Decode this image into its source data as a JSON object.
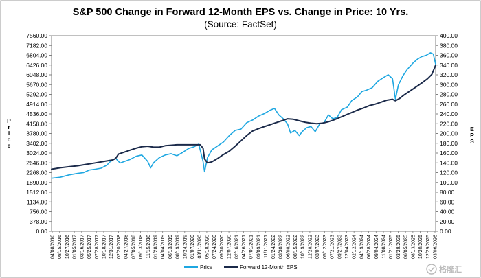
{
  "chart_data": {
    "type": "line",
    "title": "S&P 500 Change in Forward 12-Month EPS vs. Change in Price: 10 Yrs.",
    "subtitle": "(Source: FactSet)",
    "ylabel_left": "Price",
    "ylabel_right": "EPS",
    "ylim_left": [
      0,
      7560
    ],
    "ylim_right": [
      0,
      400
    ],
    "yticks_left": [
      "0.00",
      "378.00",
      "756.00",
      "1134.00",
      "1512.00",
      "1890.00",
      "2268.00",
      "2646.00",
      "3024.00",
      "3402.00",
      "3780.00",
      "4158.00",
      "4536.00",
      "4914.00",
      "5292.00",
      "5670.00",
      "6048.00",
      "6426.00",
      "6804.00",
      "7182.00",
      "7560.00"
    ],
    "yticks_right": [
      "0.00",
      "20.00",
      "40.00",
      "60.00",
      "80.00",
      "100.00",
      "120.00",
      "140.00",
      "160.00",
      "180.00",
      "200.00",
      "220.00",
      "240.00",
      "260.00",
      "280.00",
      "300.00",
      "320.00",
      "340.00",
      "360.00",
      "380.00",
      "400.00"
    ],
    "xticks": [
      "04/08/2016",
      "08/15/2016",
      "10/27/2016",
      "01/05/2017",
      "03/16/2017",
      "05/25/2017",
      "07/28/2017",
      "10/18/2017",
      "12/31/2017",
      "02/20/2018",
      "04/27/2018",
      "07/05/2018",
      "09/13/2018",
      "11/15/2018",
      "01/28/2019",
      "04/04/2019",
      "06/13/2019",
      "08/19/2019",
      "10/24/2019",
      "01/07/2020",
      "03/11/2020",
      "05/18/2020",
      "07/24/2020",
      "09/30/2020",
      "12/07/2020",
      "02/16/2021",
      "04/26/2021",
      "07/01/2021",
      "09/09/2021",
      "11/11/2021",
      "01/24/2022",
      "03/30/2022",
      "06/08/2022",
      "08/15/2022",
      "10/19/2022",
      "12/28/2022",
      "03/07/2023",
      "05/12/2023",
      "07/21/2023",
      "09/27/2023",
      "12/04/2023",
      "02/12/2024",
      "04/19/2024",
      "06/28/2024",
      "09/04/2024",
      "11/08/2024",
      "01/21/2025",
      "03/28/2025",
      "06/05/2025",
      "08/13/2025",
      "10/20/2025",
      "12/29/2025",
      "03/06/2026"
    ],
    "series": [
      {
        "name": "Price",
        "color": "#1EA7E1",
        "values": [
          [
            0,
            2050
          ],
          [
            0.3,
            2090
          ],
          [
            0.6,
            2180
          ],
          [
            0.9,
            2240
          ],
          [
            1.1,
            2270
          ],
          [
            1.3,
            2370
          ],
          [
            1.5,
            2400
          ],
          [
            1.7,
            2440
          ],
          [
            1.9,
            2560
          ],
          [
            2.0,
            2680
          ],
          [
            2.2,
            2820
          ],
          [
            2.35,
            2640
          ],
          [
            2.5,
            2700
          ],
          [
            2.7,
            2780
          ],
          [
            2.9,
            2900
          ],
          [
            3.1,
            2950
          ],
          [
            3.3,
            2700
          ],
          [
            3.4,
            2450
          ],
          [
            3.5,
            2650
          ],
          [
            3.7,
            2850
          ],
          [
            3.9,
            2950
          ],
          [
            4.1,
            3000
          ],
          [
            4.3,
            2920
          ],
          [
            4.5,
            3050
          ],
          [
            4.7,
            3200
          ],
          [
            4.9,
            3270
          ],
          [
            5.05,
            3370
          ],
          [
            5.2,
            2700
          ],
          [
            5.25,
            2300
          ],
          [
            5.35,
            2850
          ],
          [
            5.5,
            3150
          ],
          [
            5.7,
            3300
          ],
          [
            5.9,
            3450
          ],
          [
            6.1,
            3700
          ],
          [
            6.3,
            3900
          ],
          [
            6.5,
            3950
          ],
          [
            6.7,
            4200
          ],
          [
            6.9,
            4300
          ],
          [
            7.1,
            4450
          ],
          [
            7.3,
            4550
          ],
          [
            7.5,
            4680
          ],
          [
            7.65,
            4750
          ],
          [
            7.8,
            4500
          ],
          [
            7.95,
            4350
          ],
          [
            8.1,
            4150
          ],
          [
            8.2,
            3800
          ],
          [
            8.35,
            3900
          ],
          [
            8.5,
            3700
          ],
          [
            8.6,
            3850
          ],
          [
            8.75,
            4000
          ],
          [
            8.9,
            4050
          ],
          [
            9.05,
            3850
          ],
          [
            9.2,
            4150
          ],
          [
            9.35,
            4200
          ],
          [
            9.5,
            4500
          ],
          [
            9.65,
            4350
          ],
          [
            9.8,
            4400
          ],
          [
            9.95,
            4700
          ],
          [
            10.15,
            4800
          ],
          [
            10.3,
            5050
          ],
          [
            10.5,
            5200
          ],
          [
            10.65,
            5400
          ],
          [
            10.8,
            5450
          ],
          [
            11.0,
            5550
          ],
          [
            11.2,
            5800
          ],
          [
            11.4,
            5950
          ],
          [
            11.55,
            6050
          ],
          [
            11.7,
            5900
          ],
          [
            11.8,
            5100
          ],
          [
            11.9,
            5650
          ],
          [
            12.05,
            6000
          ],
          [
            12.2,
            6250
          ],
          [
            12.4,
            6500
          ],
          [
            12.55,
            6650
          ],
          [
            12.7,
            6750
          ],
          [
            12.85,
            6800
          ],
          [
            13.0,
            6900
          ],
          [
            13.1,
            6850
          ],
          [
            13.18,
            6450
          ]
        ]
      },
      {
        "name": "Forward 12-Month EPS",
        "color": "#1B2A4A",
        "values": [
          [
            0,
            127
          ],
          [
            0.3,
            130
          ],
          [
            0.6,
            132
          ],
          [
            0.9,
            134
          ],
          [
            1.2,
            137
          ],
          [
            1.5,
            140
          ],
          [
            1.8,
            143
          ],
          [
            2.1,
            146
          ],
          [
            2.2,
            149
          ],
          [
            2.3,
            158
          ],
          [
            2.5,
            162
          ],
          [
            2.7,
            166
          ],
          [
            2.9,
            170
          ],
          [
            3.1,
            173
          ],
          [
            3.3,
            174
          ],
          [
            3.5,
            172
          ],
          [
            3.7,
            172
          ],
          [
            3.9,
            175
          ],
          [
            4.1,
            176
          ],
          [
            4.3,
            177
          ],
          [
            4.5,
            177
          ],
          [
            4.7,
            177
          ],
          [
            4.9,
            177
          ],
          [
            5.1,
            177
          ],
          [
            5.2,
            170
          ],
          [
            5.25,
            148
          ],
          [
            5.35,
            140
          ],
          [
            5.5,
            142
          ],
          [
            5.7,
            149
          ],
          [
            5.9,
            157
          ],
          [
            6.1,
            164
          ],
          [
            6.3,
            174
          ],
          [
            6.5,
            185
          ],
          [
            6.7,
            196
          ],
          [
            6.9,
            205
          ],
          [
            7.1,
            210
          ],
          [
            7.3,
            214
          ],
          [
            7.5,
            218
          ],
          [
            7.7,
            222
          ],
          [
            7.9,
            226
          ],
          [
            8.1,
            230
          ],
          [
            8.3,
            229
          ],
          [
            8.5,
            226
          ],
          [
            8.7,
            223
          ],
          [
            8.9,
            221
          ],
          [
            9.1,
            220
          ],
          [
            9.3,
            221
          ],
          [
            9.5,
            224
          ],
          [
            9.7,
            228
          ],
          [
            9.9,
            233
          ],
          [
            10.1,
            238
          ],
          [
            10.3,
            243
          ],
          [
            10.5,
            248
          ],
          [
            10.7,
            252
          ],
          [
            10.9,
            257
          ],
          [
            11.1,
            260
          ],
          [
            11.3,
            264
          ],
          [
            11.5,
            268
          ],
          [
            11.7,
            270
          ],
          [
            11.8,
            267
          ],
          [
            11.95,
            272
          ],
          [
            12.1,
            279
          ],
          [
            12.3,
            287
          ],
          [
            12.5,
            295
          ],
          [
            12.7,
            303
          ],
          [
            12.9,
            312
          ],
          [
            13.05,
            321
          ],
          [
            13.18,
            340
          ]
        ]
      }
    ],
    "legend": {
      "position": "bottom",
      "entries": [
        "Price",
        "Forward 12-Month EPS"
      ]
    },
    "grid": false,
    "watermark": "格隆汇"
  }
}
